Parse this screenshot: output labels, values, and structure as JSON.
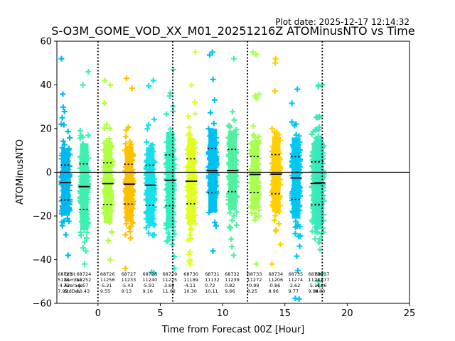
{
  "plot_date": "Plot date: 2025-12-17 12:14:32",
  "chart_data": {
    "type": "scatter",
    "title": "S-O3M_GOME_VOD_XX_M01_20251216Z ATOMinusNTO vs Time",
    "xlabel": "Time from Forecast 00Z [Hour]",
    "ylabel": "ATOMinusNTO",
    "xlim": [
      -3.3,
      25
    ],
    "ylim": [
      -60,
      60
    ],
    "xticks": [
      0,
      5,
      10,
      15,
      20,
      25
    ],
    "yticks": [
      -60,
      -40,
      -20,
      0,
      20,
      40,
      60
    ],
    "forecast_lines": [
      0,
      6,
      12,
      18
    ],
    "zero_line": 0,
    "orbits": [
      {
        "orbit": "68723",
        "x": -2.6,
        "n": "5124",
        "mean": -4.72,
        "std": 7.99,
        "ymin": -38,
        "ymax": 52,
        "color": "#00b8f0"
      },
      {
        "orbit": "68724",
        "x": -1.1,
        "n": "11252",
        "mean": -6.57,
        "std": 10.43,
        "ymin": -42,
        "ymax": 46,
        "color": "#3ff0b0"
      },
      {
        "orbit": "68726",
        "x": 0.8,
        "n": "11256",
        "mean": -5.21,
        "std": 9.55,
        "ymin": -40,
        "ymax": 42,
        "color": "#b0ff40"
      },
      {
        "orbit": "68727",
        "x": 2.5,
        "n": "11233",
        "mean": -5.43,
        "std": 9.13,
        "ymin": -44,
        "ymax": 43,
        "color": "#ffc000"
      },
      {
        "orbit": "68728",
        "x": 4.2,
        "n": "11240",
        "mean": -5.91,
        "std": 9.16,
        "ymin": -46,
        "ymax": 42,
        "color": "#18e0e8"
      },
      {
        "orbit": "68729",
        "x": 5.8,
        "n": "11225",
        "mean": -3.68,
        "std": 11.62,
        "ymin": -44,
        "ymax": 47,
        "color": "#30f0c0"
      },
      {
        "orbit": "68730",
        "x": 7.5,
        "n": "11189",
        "mean": -4.11,
        "std": 10.3,
        "ymin": -42,
        "ymax": 55,
        "color": "#e0ff20"
      },
      {
        "orbit": "68731",
        "x": 9.2,
        "n": "11132",
        "mean": 0.72,
        "std": 10.11,
        "ymin": -36,
        "ymax": 55,
        "color": "#00c0f0"
      },
      {
        "orbit": "68732",
        "x": 10.8,
        "n": "11239",
        "mean": 0.82,
        "std": 9.66,
        "ymin": -38,
        "ymax": 52,
        "color": "#50f0a0"
      },
      {
        "orbit": "68733",
        "x": 12.6,
        "n": "11272",
        "mean": -0.99,
        "std": 8.25,
        "ymin": -42,
        "ymax": 55,
        "color": "#a8ff50"
      },
      {
        "orbit": "68734",
        "x": 14.3,
        "n": "11206",
        "mean": -0.86,
        "std": 8.96,
        "ymin": -42,
        "ymax": 52,
        "color": "#ffd000"
      },
      {
        "orbit": "68735",
        "x": 15.9,
        "n": "11274",
        "mean": -2.62,
        "std": 9.77,
        "ymin": -58,
        "ymax": 38,
        "color": "#00c8f0"
      },
      {
        "orbit": "68736",
        "x": 17.5,
        "n": "11242",
        "mean": -5.11,
        "std": 9.84,
        "ymin": -52,
        "ymax": 40,
        "color": "#40f0b0"
      },
      {
        "orbit": "68737",
        "x": 17.8,
        "n": "11477",
        "mean": -4.86,
        "std": 9.83,
        "ymin": -50,
        "ymax": 40,
        "color": "#38e8c0"
      }
    ],
    "stats_labels": {
      "row1": "Orbit",
      "row2": "Number",
      "row3": "Average",
      "row4": "StdDev"
    }
  }
}
